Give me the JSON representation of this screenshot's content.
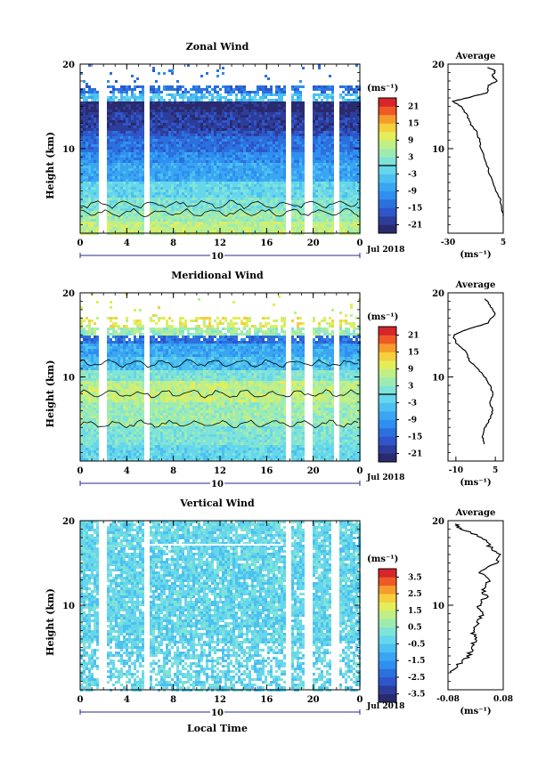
{
  "chart_data": [
    {
      "type": "heatmap",
      "title": "Zonal Wind",
      "ylabel": "Height (km)",
      "xlabel": "",
      "x_ticks": [
        "0",
        "4",
        "8",
        "12",
        "16",
        "20",
        "0"
      ],
      "y_ticks": [
        "20",
        "10"
      ],
      "date_label": "10",
      "month_label": "Jul 2018",
      "colorbar": {
        "unit": "(ms⁻¹)",
        "ticks": [
          "21",
          "15",
          "9",
          "3",
          "-3",
          "-9",
          "-15",
          "-21"
        ],
        "range": [
          -24,
          24
        ]
      },
      "average": {
        "title": "Average",
        "x_ticks": [
          "-30",
          "5"
        ],
        "xlim": [
          -30,
          5
        ],
        "y_ticks": [
          "20",
          "10"
        ],
        "unit": "(ms⁻¹)",
        "profile": [
          [
            2,
            5
          ],
          [
            4,
            3
          ],
          [
            6,
            -2
          ],
          [
            8,
            -5
          ],
          [
            10,
            -9
          ],
          [
            11,
            -10
          ],
          [
            12,
            -12
          ],
          [
            13,
            -16
          ],
          [
            14,
            -18
          ],
          [
            15,
            -22
          ],
          [
            15.6,
            -27
          ],
          [
            16,
            -18
          ],
          [
            16.6,
            -5
          ],
          [
            17.5,
            -4
          ],
          [
            18,
            1
          ],
          [
            18.6,
            -2
          ],
          [
            19.2,
            0
          ],
          [
            19.6,
            -5
          ]
        ]
      }
    },
    {
      "type": "heatmap",
      "title": "Meridional Wind",
      "ylabel": "Height (km)",
      "xlabel": "",
      "x_ticks": [
        "0",
        "4",
        "8",
        "12",
        "16",
        "20",
        "0"
      ],
      "y_ticks": [
        "20",
        "10"
      ],
      "date_label": "10",
      "month_label": "Jul 2018",
      "colorbar": {
        "unit": "(ms⁻¹)",
        "ticks": [
          "21",
          "15",
          "9",
          "3",
          "-3",
          "-9",
          "-15",
          "-21"
        ],
        "range": [
          -24,
          24
        ]
      },
      "average": {
        "title": "Average",
        "x_ticks": [
          "-10",
          "5"
        ],
        "xlim": [
          -13,
          8
        ],
        "y_ticks": [
          "20",
          "10"
        ],
        "unit": "(ms⁻¹)",
        "profile": [
          [
            2,
            1
          ],
          [
            3,
            0
          ],
          [
            4,
            1
          ],
          [
            5,
            3
          ],
          [
            6,
            4
          ],
          [
            7,
            3
          ],
          [
            8,
            4
          ],
          [
            9,
            3
          ],
          [
            10,
            1
          ],
          [
            11,
            -2
          ],
          [
            12,
            -5
          ],
          [
            13,
            -6
          ],
          [
            14,
            -10
          ],
          [
            15,
            -11
          ],
          [
            15.6,
            -6
          ],
          [
            16.4,
            2
          ],
          [
            17.5,
            5
          ],
          [
            18.5,
            3
          ],
          [
            19.3,
            1
          ]
        ]
      }
    },
    {
      "type": "heatmap",
      "title": "Vertical Wind",
      "ylabel": "Height (km)",
      "xlabel": "Local Time",
      "x_ticks": [
        "0",
        "4",
        "8",
        "12",
        "16",
        "20",
        "0"
      ],
      "y_ticks": [
        "20",
        "10"
      ],
      "date_label": "10",
      "month_label": "Jul 2018",
      "colorbar": {
        "unit": "(ms⁻¹)",
        "ticks": [
          "3.5",
          "2.5",
          "1.5",
          "0.5",
          "-0.5",
          "-1.5",
          "-2.5",
          "-3.5"
        ],
        "range": [
          -4,
          4
        ]
      },
      "average": {
        "title": "Average",
        "x_ticks": [
          "-0.08",
          "0.08"
        ],
        "xlim": [
          -0.08,
          0.08
        ],
        "y_ticks": [
          "20",
          "10"
        ],
        "unit": "(ms⁻¹)",
        "profile": [
          [
            2,
            -0.07
          ],
          [
            3,
            -0.05
          ],
          [
            4,
            -0.02
          ],
          [
            5,
            -0.01
          ],
          [
            6,
            0.0
          ],
          [
            7,
            -0.01
          ],
          [
            8,
            0.01
          ],
          [
            9,
            0.02
          ],
          [
            10,
            0.01
          ],
          [
            11,
            0.03
          ],
          [
            12,
            0.02
          ],
          [
            13,
            0.04
          ],
          [
            14,
            0.01
          ],
          [
            15,
            0.06
          ],
          [
            16,
            0.07
          ],
          [
            17,
            0.04
          ],
          [
            18,
            0.02
          ],
          [
            19,
            -0.04
          ],
          [
            19.6,
            -0.06
          ]
        ]
      }
    }
  ]
}
